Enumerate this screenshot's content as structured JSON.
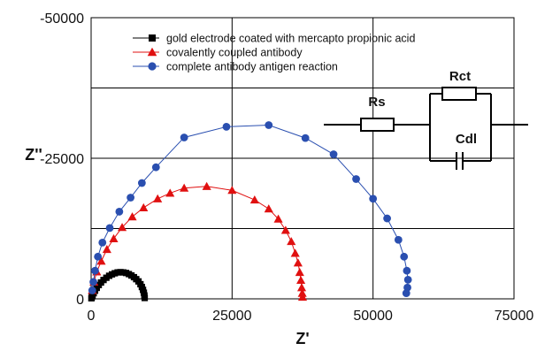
{
  "chart_data": {
    "type": "scatter",
    "xlabel": "Z'",
    "ylabel": "Z''",
    "xlim": [
      0,
      75000
    ],
    "ylim": [
      -50000,
      0
    ],
    "x_ticks": [
      0,
      25000,
      50000,
      75000
    ],
    "y_ticks": [
      -50000,
      -25000,
      0
    ],
    "grid": true,
    "legend": "top-center",
    "series": [
      {
        "name": "gold electrode coated with mercapto propionic acid",
        "marker": "square",
        "color": "#000000",
        "x": [
          50,
          120,
          250,
          450,
          700,
          1000,
          1350,
          1750,
          2200,
          2700,
          3200,
          3700,
          4200,
          4700,
          5200,
          5700,
          6200,
          6700,
          7150,
          7600,
          8000,
          8400,
          8750,
          9000,
          9200,
          9350,
          9450,
          9500
        ],
        "y": [
          -100,
          -300,
          -600,
          -1000,
          -1450,
          -1950,
          -2450,
          -2900,
          -3350,
          -3750,
          -4100,
          -4350,
          -4550,
          -4700,
          -4750,
          -4700,
          -4600,
          -4400,
          -4150,
          -3850,
          -3500,
          -3100,
          -2600,
          -2100,
          -1600,
          -1100,
          -600,
          -150
        ]
      },
      {
        "name": "covalently coupled antibody",
        "marker": "triangle",
        "color": "#e01010",
        "x": [
          200,
          500,
          1000,
          1800,
          2800,
          4000,
          5500,
          7300,
          9300,
          11800,
          14000,
          16500,
          20500,
          25000,
          29000,
          31500,
          33200,
          34500,
          35500,
          36200,
          36700,
          37000,
          37200,
          37350,
          37450,
          37500
        ],
        "y": [
          -1500,
          -3000,
          -4800,
          -6700,
          -8800,
          -10700,
          -12700,
          -14600,
          -16200,
          -17800,
          -18800,
          -19700,
          -20000,
          -19300,
          -17600,
          -16000,
          -14200,
          -12200,
          -10200,
          -8100,
          -6400,
          -4700,
          -3300,
          -2000,
          -1000,
          -300
        ]
      },
      {
        "name": "complete antibody antigen reaction",
        "marker": "circle",
        "color": "#2a4fb0",
        "x": [
          200,
          400,
          700,
          1200,
          2000,
          3300,
          5000,
          7000,
          9000,
          11500,
          16500,
          24000,
          31500,
          38000,
          43000,
          47000,
          50000,
          52500,
          54500,
          55500,
          56000,
          56200,
          56100,
          55900
        ],
        "y": [
          -1500,
          -3000,
          -5000,
          -7500,
          -10000,
          -12600,
          -15500,
          -18000,
          -20600,
          -23400,
          -28700,
          -30600,
          -30900,
          -28600,
          -25700,
          -21300,
          -17800,
          -14300,
          -10500,
          -7500,
          -5000,
          -3400,
          -2000,
          -1000
        ]
      }
    ]
  },
  "circuit": {
    "rs_label": "Rs",
    "rct_label": "Rct",
    "cdl_label": "Cdl"
  }
}
